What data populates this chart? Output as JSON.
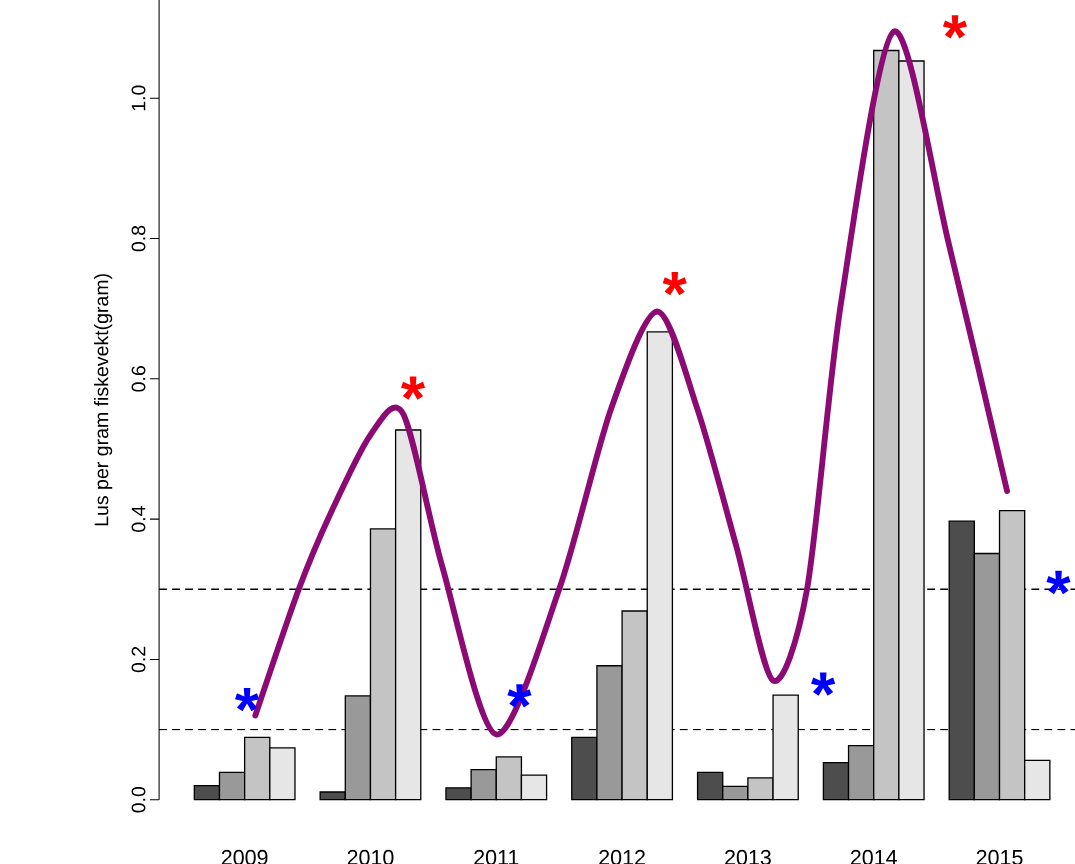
{
  "chart_data": {
    "type": "bar",
    "ylabel": "Lus per gram fiskevekt(gram)",
    "x": [
      2009,
      2010,
      2011,
      2012,
      2013,
      2014,
      2015
    ],
    "series": [
      {
        "color": "#4d4d4d",
        "values": [
          0.02,
          0.011,
          0.017,
          0.089,
          0.039,
          0.053,
          0.397
        ]
      },
      {
        "color": "#999999",
        "values": [
          0.039,
          0.148,
          0.043,
          0.191,
          0.019,
          0.077,
          0.351
        ]
      },
      {
        "color": "#c4c4c4",
        "values": [
          0.089,
          0.386,
          0.061,
          0.269,
          0.031,
          1.068,
          0.412
        ]
      },
      {
        "color": "#e6e6e6",
        "values": [
          0.074,
          0.527,
          0.035,
          0.667,
          0.149,
          1.053,
          0.056
        ]
      },
      {
        "type": "line",
        "color": "#8b0a73",
        "marker": "none",
        "line_style": "solid",
        "x": [
          2009.085,
          2009.43,
          2009.68,
          2010.0,
          2010.26,
          2010.57,
          2011.0,
          2011.5,
          2011.91,
          2012.28,
          2012.6,
          2012.91,
          2013.2,
          2013.47,
          2013.74,
          2014.16,
          2014.6,
          2015.06
        ],
        "values": [
          0.12,
          0.3,
          0.407,
          0.52,
          0.55,
          0.333,
          0.093,
          0.3,
          0.556,
          0.696,
          0.556,
          0.36,
          0.17,
          0.3,
          0.708,
          1.095,
          0.79,
          0.44
        ]
      }
    ],
    "xlim": [
      2008.32,
      2015.6
    ],
    "xticks": [
      2009,
      2010,
      2011,
      2012,
      2013,
      2014,
      2015
    ],
    "ylim": [
      0,
      1.14
    ],
    "yticks": [
      {
        "value": 0,
        "label": "0.0"
      },
      {
        "value": 0.2,
        "label": "0.2"
      },
      {
        "value": 0.4,
        "label": "0.4"
      },
      {
        "value": 0.6,
        "label": "0.6"
      },
      {
        "value": 0.8,
        "label": "0.8"
      },
      {
        "value": 1.0,
        "label": "1.0"
      }
    ],
    "ref_lines": [
      {
        "axis": "y",
        "value": 0.1,
        "color": "#000000",
        "line_style": "dashed"
      },
      {
        "axis": "y",
        "value": 0.3,
        "color": "#000000",
        "line_style": "dashed"
      }
    ],
    "annotations": [
      "*",
      "*",
      "*",
      "*",
      "*",
      "*",
      "*"
    ],
    "grid": false
  }
}
